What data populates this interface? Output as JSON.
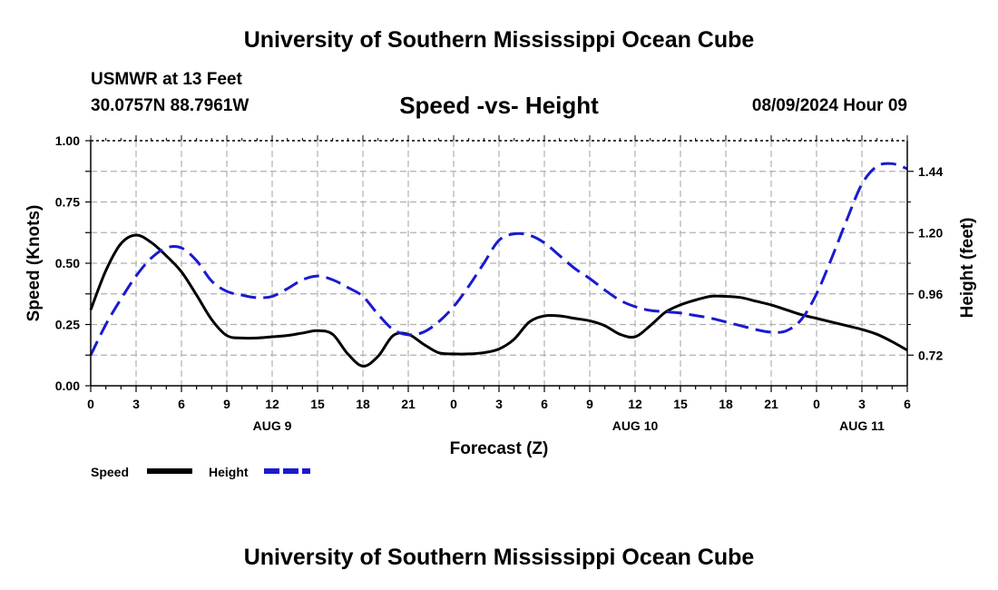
{
  "header": {
    "title": "University of Southern Mississippi Ocean Cube",
    "station": "USMWR at 13 Feet",
    "coords": "30.0757N  88.7961W",
    "subtitle": "Speed -vs- Height",
    "datetime": "08/09/2024 Hour 09",
    "footer_title": "University of Southern Mississippi Ocean Cube"
  },
  "colors": {
    "speed": "#000000",
    "height": "#1a1ad0",
    "grid": "#b0b0b0"
  },
  "chart_data": {
    "type": "line",
    "xlabel": "Forecast (Z)",
    "ylabel": "Speed (Knots)",
    "y2label": "Height (feet)",
    "x_hours": [
      0,
      54
    ],
    "x_tick_labels": [
      "0",
      "3",
      "6",
      "9",
      "12",
      "15",
      "18",
      "21",
      "0",
      "3",
      "6",
      "9",
      "12",
      "15",
      "18",
      "21",
      "0",
      "3",
      "6"
    ],
    "day_labels": [
      {
        "label": "AUG 9",
        "hour": 12
      },
      {
        "label": "AUG 10",
        "hour": 36
      },
      {
        "label": "AUG 11",
        "hour": 51
      }
    ],
    "ylim": [
      0,
      1.0
    ],
    "y_ticks": [
      0.0,
      0.25,
      0.5,
      0.75,
      1.0
    ],
    "y_tick_labels": [
      "0.00",
      "0.25",
      "0.50",
      "0.75",
      "1.00"
    ],
    "y2lim": [
      0.6,
      1.56
    ],
    "y2_ticks": [
      0.72,
      0.96,
      1.2,
      1.44
    ],
    "y2_tick_labels": [
      "0.72",
      "0.96",
      "1.20",
      "1.44"
    ],
    "series": [
      {
        "name": "Speed",
        "axis": "left",
        "style": "solid",
        "x": [
          0,
          1,
          2,
          3,
          4,
          5,
          6,
          7,
          8,
          9,
          10,
          11,
          12,
          13,
          14,
          15,
          16,
          17,
          18,
          19,
          20,
          21,
          22,
          23,
          24,
          25,
          26,
          27,
          28,
          29,
          30,
          31,
          32,
          33,
          34,
          35,
          36,
          37,
          38,
          39,
          40,
          41,
          42,
          43,
          44,
          45,
          46,
          47,
          48,
          49,
          50,
          51,
          52,
          53,
          54
        ],
        "values": [
          0.31,
          0.47,
          0.58,
          0.615,
          0.585,
          0.53,
          0.465,
          0.37,
          0.27,
          0.205,
          0.195,
          0.195,
          0.2,
          0.205,
          0.215,
          0.225,
          0.21,
          0.13,
          0.08,
          0.12,
          0.205,
          0.21,
          0.17,
          0.135,
          0.13,
          0.13,
          0.135,
          0.15,
          0.19,
          0.26,
          0.285,
          0.285,
          0.275,
          0.265,
          0.245,
          0.21,
          0.2,
          0.245,
          0.3,
          0.33,
          0.35,
          0.365,
          0.365,
          0.36,
          0.345,
          0.33,
          0.31,
          0.29,
          0.275,
          0.26,
          0.245,
          0.23,
          0.21,
          0.18,
          0.145
        ]
      },
      {
        "name": "Height",
        "axis": "right",
        "style": "dashed",
        "x": [
          0,
          1,
          2,
          3,
          4,
          5,
          6,
          7,
          8,
          9,
          10,
          11,
          12,
          13,
          14,
          15,
          16,
          17,
          18,
          19,
          20,
          21,
          22,
          23,
          24,
          25,
          26,
          27,
          28,
          29,
          30,
          31,
          32,
          33,
          34,
          35,
          36,
          37,
          38,
          39,
          40,
          41,
          42,
          43,
          44,
          45,
          46,
          47,
          48,
          49,
          50,
          51,
          52,
          53,
          54
        ],
        "values": [
          0.72,
          0.84,
          0.94,
          1.03,
          1.1,
          1.14,
          1.14,
          1.09,
          1.01,
          0.97,
          0.955,
          0.945,
          0.95,
          0.98,
          1.015,
          1.03,
          1.015,
          0.985,
          0.95,
          0.88,
          0.82,
          0.8,
          0.81,
          0.85,
          0.91,
          0.99,
          1.08,
          1.17,
          1.195,
          1.19,
          1.16,
          1.11,
          1.06,
          1.02,
          0.975,
          0.935,
          0.91,
          0.895,
          0.89,
          0.885,
          0.875,
          0.865,
          0.85,
          0.835,
          0.82,
          0.81,
          0.815,
          0.86,
          0.96,
          1.1,
          1.25,
          1.39,
          1.46,
          1.47,
          1.45
        ]
      }
    ]
  },
  "legend": {
    "speed_label": "Speed",
    "height_label": "Height"
  }
}
